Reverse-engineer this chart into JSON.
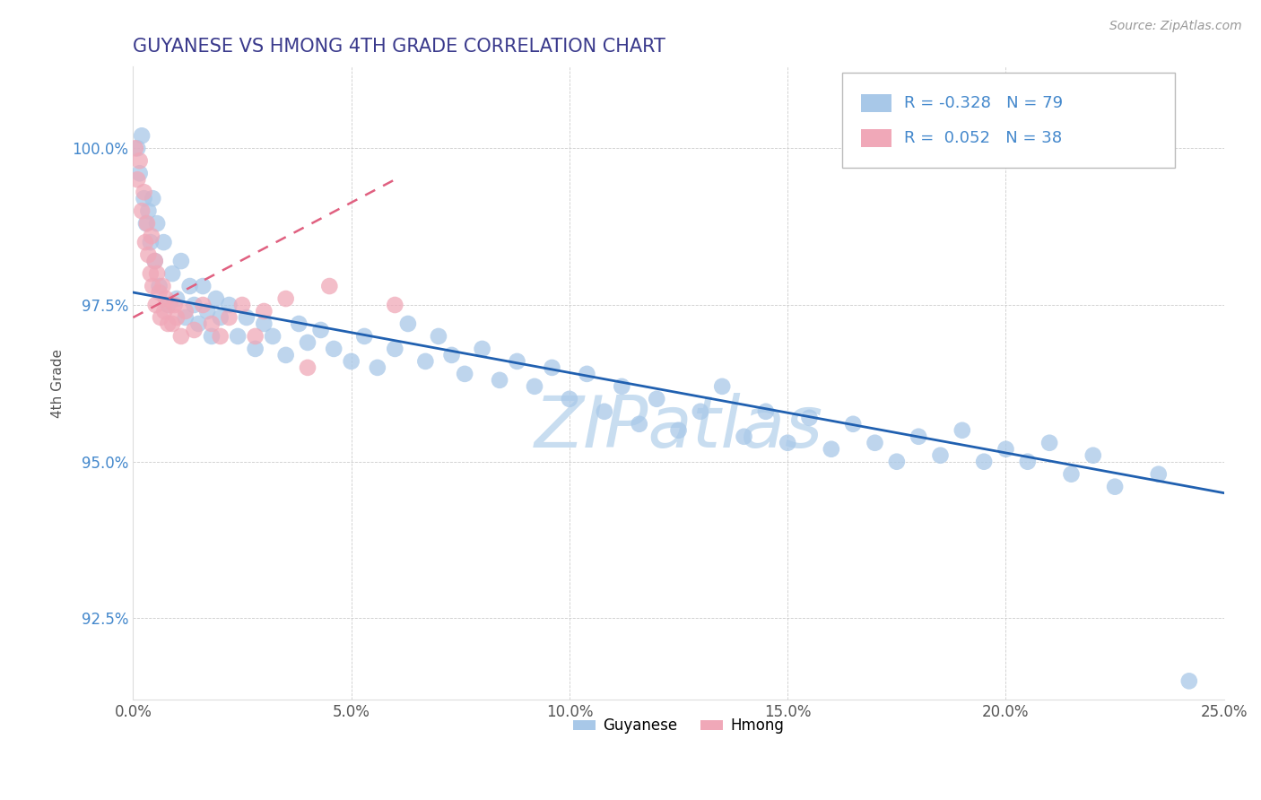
{
  "title": "GUYANESE VS HMONG 4TH GRADE CORRELATION CHART",
  "title_color": "#3a3a8c",
  "source_text": "Source: ZipAtlas.com",
  "ylabel": "4th Grade",
  "xlim": [
    0.0,
    25.0
  ],
  "ylim": [
    91.2,
    101.3
  ],
  "xticks": [
    0.0,
    5.0,
    10.0,
    15.0,
    20.0,
    25.0
  ],
  "xticklabels": [
    "0.0%",
    "5.0%",
    "10.0%",
    "15.0%",
    "20.0%",
    "25.0%"
  ],
  "yticks": [
    92.5,
    95.0,
    97.5,
    100.0
  ],
  "yticklabels": [
    "92.5%",
    "95.0%",
    "97.5%",
    "100.0%"
  ],
  "guyanese_color": "#a8c8e8",
  "hmong_color": "#f0a8b8",
  "trendline_guyanese_color": "#2060b0",
  "trendline_hmong_color": "#e06080",
  "legend_r_guyanese": "-0.328",
  "legend_n_guyanese": "79",
  "legend_r_hmong": "0.052",
  "legend_n_hmong": "38",
  "watermark": "ZIPatlas",
  "watermark_color": "#c8ddf0",
  "trendline_g_x0": 0.0,
  "trendline_g_y0": 97.7,
  "trendline_g_x1": 25.0,
  "trendline_g_y1": 94.5,
  "trendline_h_x0": 0.0,
  "trendline_h_y0": 97.3,
  "trendline_h_x1": 6.0,
  "trendline_h_y1": 99.5,
  "guyanese_x": [
    0.1,
    0.15,
    0.2,
    0.25,
    0.3,
    0.35,
    0.4,
    0.45,
    0.5,
    0.55,
    0.6,
    0.7,
    0.8,
    0.9,
    1.0,
    1.1,
    1.2,
    1.3,
    1.4,
    1.5,
    1.6,
    1.7,
    1.8,
    1.9,
    2.0,
    2.2,
    2.4,
    2.6,
    2.8,
    3.0,
    3.2,
    3.5,
    3.8,
    4.0,
    4.3,
    4.6,
    5.0,
    5.3,
    5.6,
    6.0,
    6.3,
    6.7,
    7.0,
    7.3,
    7.6,
    8.0,
    8.4,
    8.8,
    9.2,
    9.6,
    10.0,
    10.4,
    10.8,
    11.2,
    11.6,
    12.0,
    12.5,
    13.0,
    13.5,
    14.0,
    14.5,
    15.0,
    15.5,
    16.0,
    16.5,
    17.0,
    17.5,
    18.0,
    18.5,
    19.0,
    19.5,
    20.0,
    20.5,
    21.0,
    21.5,
    22.0,
    22.5,
    23.5,
    24.2
  ],
  "guyanese_y": [
    100.0,
    99.6,
    100.2,
    99.2,
    98.8,
    99.0,
    98.5,
    99.2,
    98.2,
    98.8,
    97.8,
    98.5,
    97.5,
    98.0,
    97.6,
    98.2,
    97.3,
    97.8,
    97.5,
    97.2,
    97.8,
    97.4,
    97.0,
    97.6,
    97.3,
    97.5,
    97.0,
    97.3,
    96.8,
    97.2,
    97.0,
    96.7,
    97.2,
    96.9,
    97.1,
    96.8,
    96.6,
    97.0,
    96.5,
    96.8,
    97.2,
    96.6,
    97.0,
    96.7,
    96.4,
    96.8,
    96.3,
    96.6,
    96.2,
    96.5,
    96.0,
    96.4,
    95.8,
    96.2,
    95.6,
    96.0,
    95.5,
    95.8,
    96.2,
    95.4,
    95.8,
    95.3,
    95.7,
    95.2,
    95.6,
    95.3,
    95.0,
    95.4,
    95.1,
    95.5,
    95.0,
    95.2,
    95.0,
    95.3,
    94.8,
    95.1,
    94.6,
    94.8,
    91.5
  ],
  "hmong_x": [
    0.05,
    0.1,
    0.15,
    0.2,
    0.25,
    0.28,
    0.32,
    0.35,
    0.4,
    0.42,
    0.45,
    0.5,
    0.52,
    0.55,
    0.6,
    0.63,
    0.68,
    0.72,
    0.75,
    0.8,
    0.85,
    0.9,
    0.95,
    1.0,
    1.1,
    1.2,
    1.4,
    1.6,
    1.8,
    2.0,
    2.2,
    2.5,
    2.8,
    3.0,
    3.5,
    4.0,
    4.5,
    6.0
  ],
  "hmong_y": [
    100.0,
    99.5,
    99.8,
    99.0,
    99.3,
    98.5,
    98.8,
    98.3,
    98.0,
    98.6,
    97.8,
    98.2,
    97.5,
    98.0,
    97.7,
    97.3,
    97.8,
    97.4,
    97.6,
    97.2,
    97.5,
    97.2,
    97.5,
    97.3,
    97.0,
    97.4,
    97.1,
    97.5,
    97.2,
    97.0,
    97.3,
    97.5,
    97.0,
    97.4,
    97.6,
    96.5,
    97.8,
    97.5
  ]
}
